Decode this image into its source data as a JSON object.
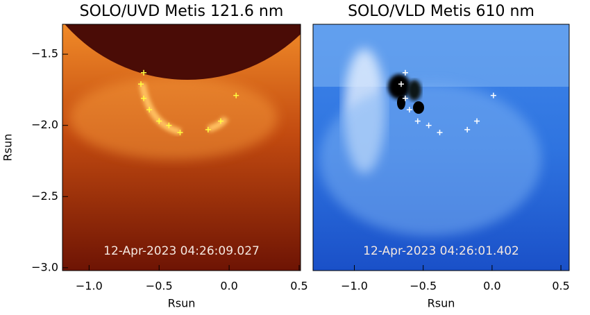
{
  "chart_data": [
    {
      "type": "image",
      "title": "SOLO/UVD Metis 121.6 nm",
      "xlabel": "Rsun",
      "ylabel": "Rsun",
      "annotation": "12-Apr-2023 04:26:09.027",
      "xlim": [
        -1.19,
        0.51
      ],
      "ylim": [
        -3.02,
        -1.29
      ],
      "xticks": [
        {
          "value": -1.0,
          "label": "−1.0"
        },
        {
          "value": -0.5,
          "label": "−0.5"
        },
        {
          "value": 0,
          "label": "0.0"
        },
        {
          "value": 0.5,
          "label": "0.5"
        }
      ],
      "yticks": [
        {
          "value": -1.5,
          "label": "−1.5"
        },
        {
          "value": -2.0,
          "label": "−2.0"
        },
        {
          "value": -2.5,
          "label": "−2.5"
        },
        {
          "value": -3.0,
          "label": "−3.0"
        }
      ],
      "markers": {
        "color": "#ffff40",
        "x": [
          -0.61,
          -0.63,
          -0.61,
          -0.57,
          -0.5,
          -0.43,
          -0.35,
          -0.15,
          -0.06,
          0.05
        ],
        "y": [
          -1.63,
          -1.71,
          -1.81,
          -1.89,
          -1.97,
          -2.0,
          -2.05,
          -2.03,
          -1.97,
          -1.79
        ]
      }
    },
    {
      "type": "image",
      "title": "SOLO/VLD Metis 610 nm",
      "xlabel": "Rsun",
      "annotation": "12-Apr-2023 04:26:01.402",
      "xlim": [
        -1.3,
        0.56
      ],
      "ylim": [
        -3.02,
        -1.29
      ],
      "xticks": [
        {
          "value": -1.0,
          "label": "−1.0"
        },
        {
          "value": -0.5,
          "label": "−0.5"
        },
        {
          "value": 0,
          "label": "0.0"
        },
        {
          "value": 0.5,
          "label": "0.5"
        }
      ],
      "markers": {
        "color": "#ffffff",
        "x": [
          -0.63,
          -0.66,
          -0.63,
          -0.6,
          -0.54,
          -0.46,
          -0.38,
          -0.18,
          -0.11,
          0.01
        ],
        "y": [
          -1.63,
          -1.71,
          -1.81,
          -1.89,
          -1.97,
          -2.0,
          -2.05,
          -2.03,
          -1.97,
          -1.79
        ]
      }
    }
  ]
}
